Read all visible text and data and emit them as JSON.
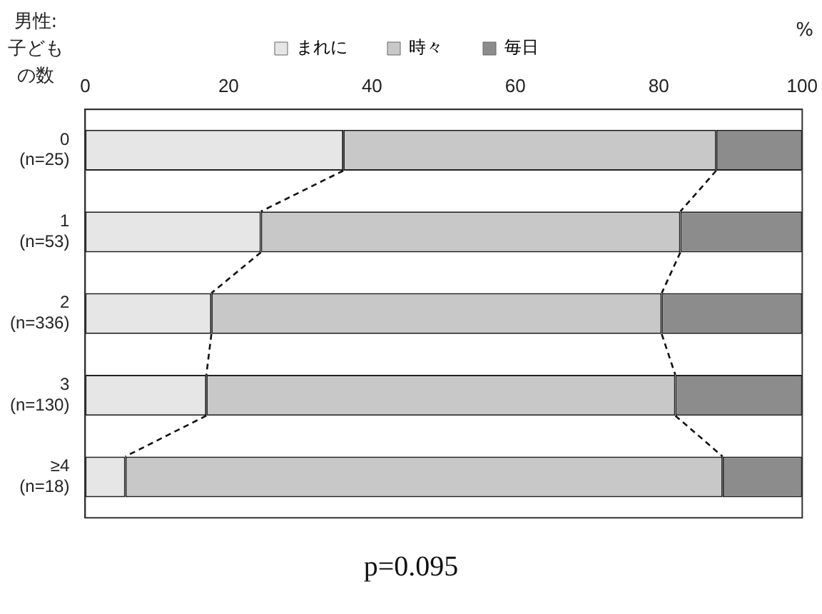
{
  "chart_data": {
    "type": "bar",
    "orientation": "horizontal",
    "stacked": true,
    "ylabel": "男性:子どもの数",
    "xlabel": "%",
    "categories": [
      "0\n(n=25)",
      "1\n(n=53)",
      "2\n(n=336)",
      "3\n(n=130)",
      "≥4\n(n=18)"
    ],
    "series": [
      {
        "name": "まれに",
        "color": "#e6e6e6",
        "values": [
          36,
          24.5,
          17.6,
          16.9,
          5.6
        ]
      },
      {
        "name": "時々",
        "color": "#c8c8c8",
        "values": [
          52,
          58.5,
          62.8,
          65.4,
          83.3
        ]
      },
      {
        "name": "毎日",
        "color": "#8c8c8c",
        "values": [
          12,
          17,
          19.6,
          17.7,
          11.1
        ]
      }
    ],
    "xlim": [
      0,
      100
    ],
    "xticks": [
      0,
      20,
      40,
      60,
      80,
      100
    ],
    "grid": false,
    "legend": "top",
    "annotations": [
      "p=0.095"
    ]
  }
}
